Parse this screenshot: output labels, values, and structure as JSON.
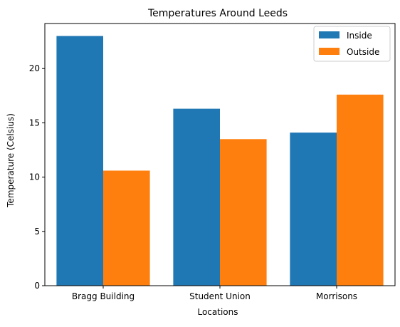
{
  "chart_data": {
    "type": "bar",
    "title": "Temperatures Around Leeds",
    "xlabel": "Locations",
    "ylabel": "Temperature (Celsius)",
    "categories": [
      "Bragg Building",
      "Student Union",
      "Morrisons"
    ],
    "series": [
      {
        "name": "Inside",
        "values": [
          23.0,
          16.3,
          14.1
        ],
        "color": "#1f77b4"
      },
      {
        "name": "Outside",
        "values": [
          10.6,
          13.5,
          17.6
        ],
        "color": "#ff7f0e"
      }
    ],
    "ylim": [
      0,
      24.15
    ],
    "yticks": [
      0,
      5,
      10,
      15,
      20
    ],
    "grid": false,
    "legend_position": "top-right"
  }
}
